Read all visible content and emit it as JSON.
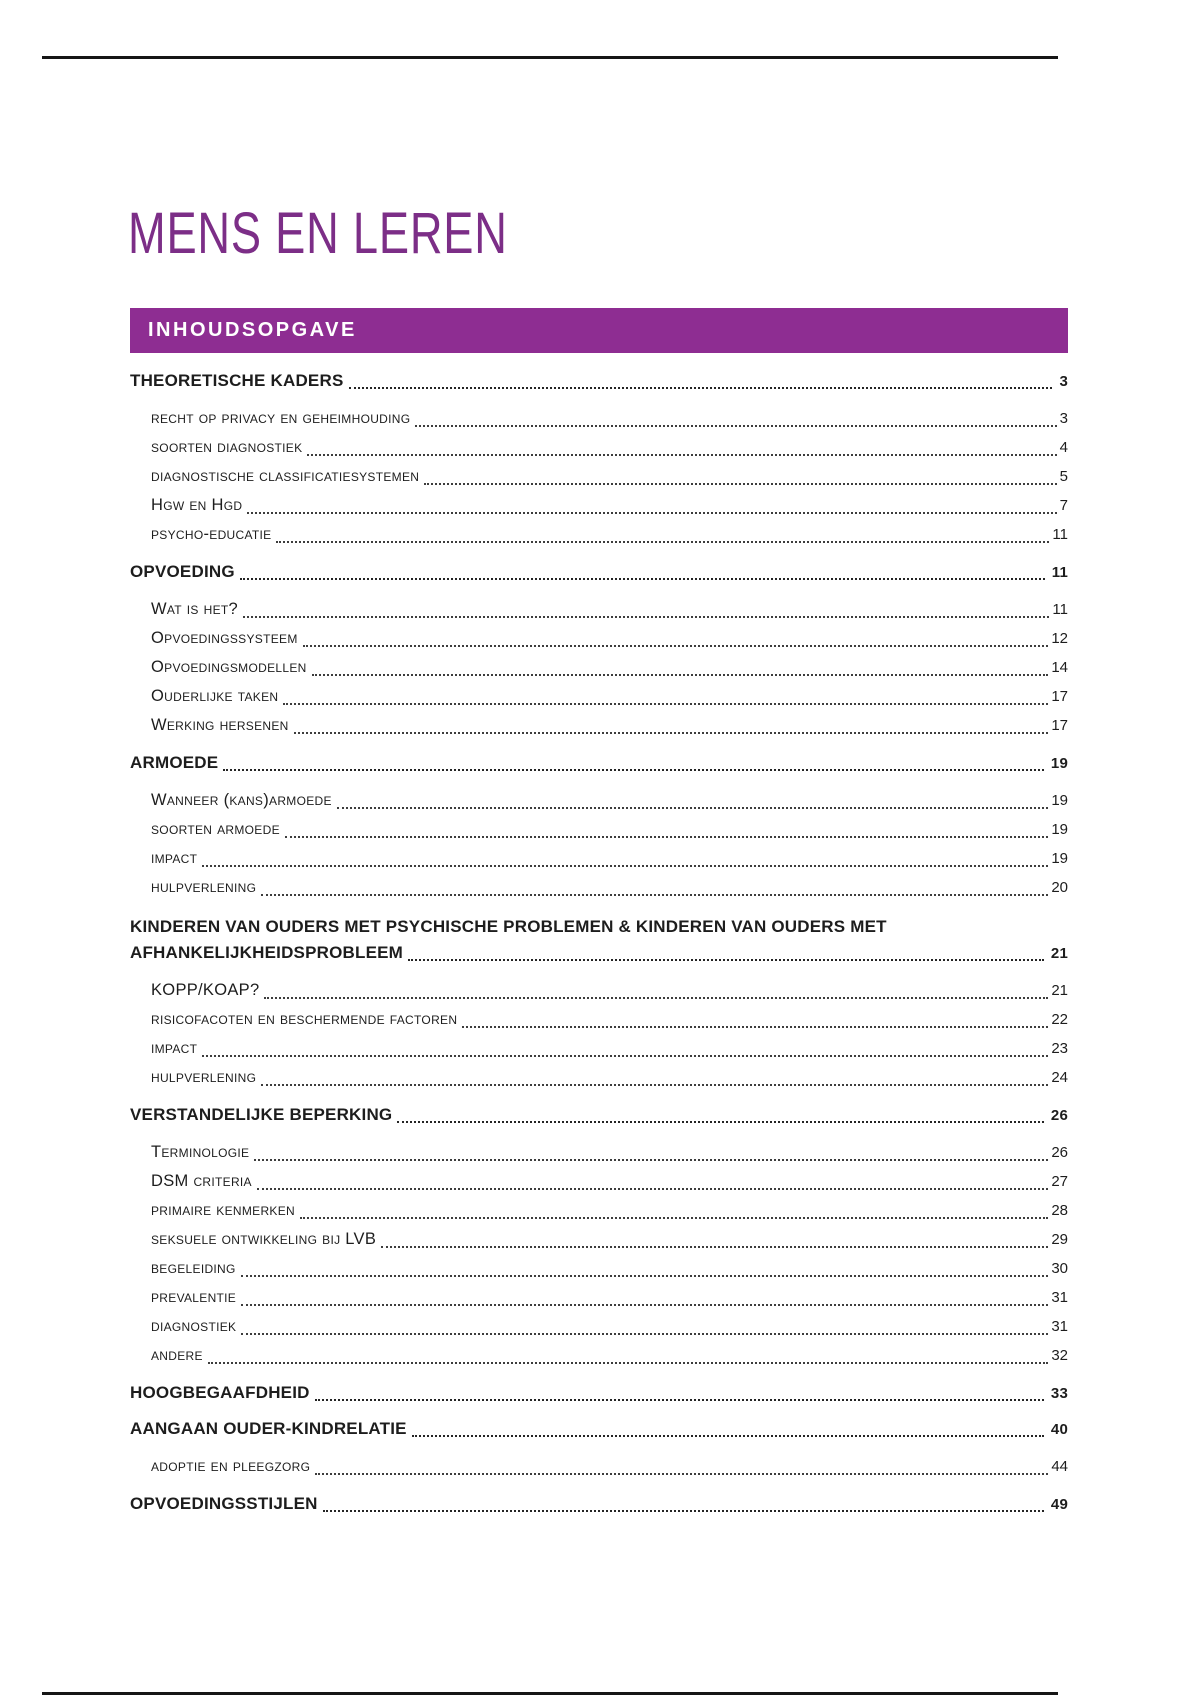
{
  "document": {
    "title": "MENS EN LEREN",
    "toc_header": "INHOUDSOPGAVE"
  },
  "colors": {
    "banner_purple": "#8e2d92",
    "title_purple": "#7c2e87",
    "text_dark": "#1d1d1d",
    "rule_black": "#161616"
  },
  "toc": {
    "entries": [
      {
        "level": 1,
        "label": "THEORETISCHE KADERS",
        "page": "3"
      },
      {
        "level": 2,
        "label": "recht op privacy en geheimhouding",
        "page": "3"
      },
      {
        "level": 2,
        "label": "soorten diagnostiek",
        "page": "4"
      },
      {
        "level": 2,
        "label": "diagnostische classificatiesystemen",
        "page": "5"
      },
      {
        "level": 2,
        "label": "Hgw en Hgd",
        "page": "7"
      },
      {
        "level": 2,
        "label": "psycho-educatie",
        "page": "11"
      },
      {
        "level": 1,
        "label": "OPVOEDING",
        "page": "11"
      },
      {
        "level": 2,
        "label": "Wat is het?",
        "page": "11"
      },
      {
        "level": 2,
        "label": "Opvoedingssysteem",
        "page": "12"
      },
      {
        "level": 2,
        "label": "Opvoedingsmodellen",
        "page": "14"
      },
      {
        "level": 2,
        "label": "Ouderlijke taken",
        "page": "17"
      },
      {
        "level": 2,
        "label": "Werking hersenen",
        "page": "17"
      },
      {
        "level": 1,
        "label": "ARMOEDE",
        "page": "19"
      },
      {
        "level": 2,
        "label": "Wanneer (kans)armoede",
        "page": "19"
      },
      {
        "level": 2,
        "label": "soorten armoede",
        "page": "19"
      },
      {
        "level": 2,
        "label": "impact",
        "page": "19"
      },
      {
        "level": 2,
        "label": "hulpverlening",
        "page": "20"
      },
      {
        "level": 1,
        "label": "KINDEREN VAN OUDERS MET PSYCHISCHE PROBLEMEN & KINDEREN VAN OUDERS MET",
        "label2": "AFHANKELIJKHEIDSPROBLEEM",
        "page": "21"
      },
      {
        "level": 2,
        "label": "KOPP/KOAP?",
        "page": "21"
      },
      {
        "level": 2,
        "label": "risicofacoten en beschermende factoren",
        "page": "22"
      },
      {
        "level": 2,
        "label": "impact",
        "page": "23"
      },
      {
        "level": 2,
        "label": "hulpverlening",
        "page": "24"
      },
      {
        "level": 1,
        "label": "VERSTANDELIJKE BEPERKING",
        "page": "26"
      },
      {
        "level": 2,
        "label": "Terminologie",
        "page": "26"
      },
      {
        "level": 2,
        "label": "DSM criteria",
        "page": "27"
      },
      {
        "level": 2,
        "label": "primaire kenmerken",
        "page": "28"
      },
      {
        "level": 2,
        "label": "seksuele ontwikkeling bij LVB",
        "page": "29"
      },
      {
        "level": 2,
        "label": "begeleiding",
        "page": "30"
      },
      {
        "level": 2,
        "label": "prevalentie",
        "page": "31"
      },
      {
        "level": 2,
        "label": "diagnostiek",
        "page": "31"
      },
      {
        "level": 2,
        "label": "andere",
        "page": "32"
      },
      {
        "level": 1,
        "label": "HOOGBEGAAFDHEID",
        "page": "33"
      },
      {
        "level": 1,
        "label": "AANGAAN OUDER-KINDRELATIE",
        "page": "40"
      },
      {
        "level": 2,
        "label": "adoptie en pleegzorg",
        "page": "44"
      },
      {
        "level": 1,
        "label": "OPVOEDINGSSTIJLEN",
        "page": "49"
      }
    ]
  }
}
